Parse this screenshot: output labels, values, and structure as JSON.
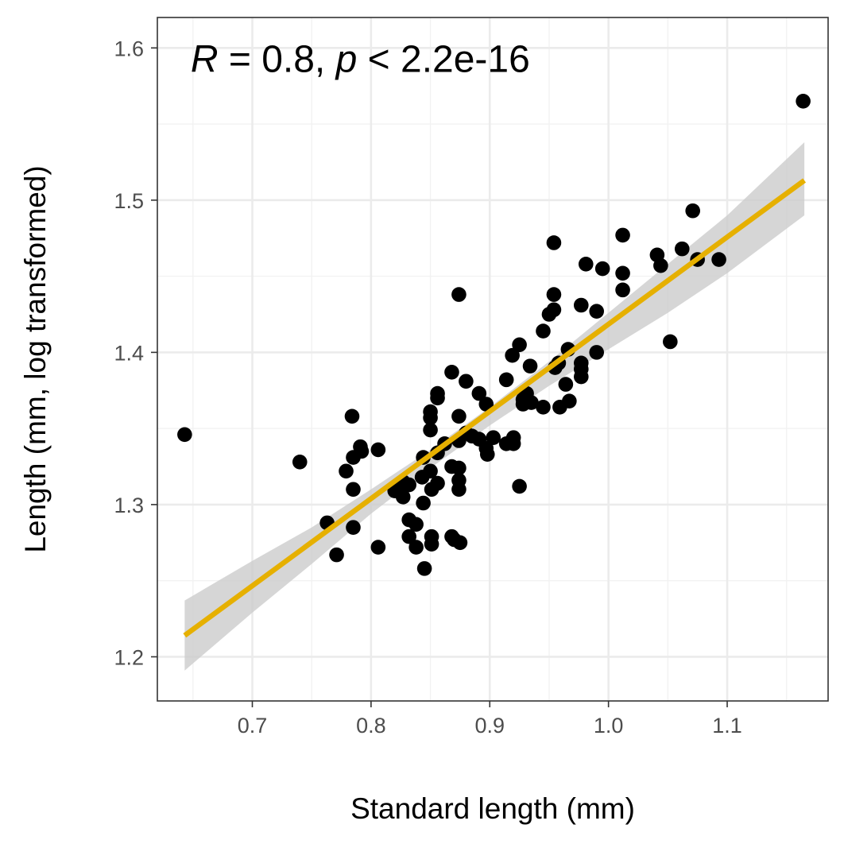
{
  "chart_data": {
    "type": "scatter",
    "xlabel": "Standard length (mm)",
    "ylabel": "Length (mm, log transformed)",
    "xlim": [
      0.62,
      1.185
    ],
    "ylim": [
      1.171,
      1.62
    ],
    "x_ticks": [
      0.7,
      0.8,
      0.9,
      1.0,
      1.1
    ],
    "x_tick_labels": [
      "0.7",
      "0.8",
      "0.9",
      "1.0",
      "1.1"
    ],
    "y_ticks": [
      1.2,
      1.3,
      1.4,
      1.5,
      1.6
    ],
    "y_tick_labels": [
      "1.2",
      "1.3",
      "1.4",
      "1.5",
      "1.6"
    ],
    "grid": true,
    "annotation": {
      "r_symbol": "R",
      "r_text": " = 0.8, ",
      "p_symbol": "p",
      "p_text": " < 2.2e-16",
      "x": 0.648,
      "y": 1.593
    },
    "fit": {
      "x": [
        0.643,
        1.165
      ],
      "y": [
        1.214,
        1.513
      ],
      "color": "#E6B000",
      "ci": [
        [
          0.643,
          1.237,
          1.191
        ],
        [
          0.7,
          1.263,
          1.229
        ],
        [
          0.75,
          1.285,
          1.261
        ],
        [
          0.8,
          1.31,
          1.294
        ],
        [
          0.85,
          1.336,
          1.324
        ],
        [
          0.9,
          1.364,
          1.352
        ],
        [
          0.95,
          1.394,
          1.378
        ],
        [
          1.0,
          1.426,
          1.402
        ],
        [
          1.05,
          1.458,
          1.426
        ],
        [
          1.1,
          1.49,
          1.452
        ],
        [
          1.165,
          1.538,
          1.49
        ]
      ],
      "ci_color": "#cccccc"
    },
    "point_color": "#000000",
    "points": [
      [
        0.643,
        1.346
      ],
      [
        0.74,
        1.328
      ],
      [
        0.763,
        1.288
      ],
      [
        0.771,
        1.267
      ],
      [
        0.779,
        1.322
      ],
      [
        0.784,
        1.358
      ],
      [
        0.785,
        1.331
      ],
      [
        0.785,
        1.31
      ],
      [
        0.785,
        1.285
      ],
      [
        0.791,
        1.338
      ],
      [
        0.792,
        1.335
      ],
      [
        0.806,
        1.336
      ],
      [
        0.806,
        1.272
      ],
      [
        0.82,
        1.309
      ],
      [
        0.823,
        1.31
      ],
      [
        0.827,
        1.315
      ],
      [
        0.827,
        1.305
      ],
      [
        0.832,
        1.313
      ],
      [
        0.832,
        1.29
      ],
      [
        0.832,
        1.279
      ],
      [
        0.838,
        1.287
      ],
      [
        0.838,
        1.272
      ],
      [
        0.843,
        1.318
      ],
      [
        0.844,
        1.331
      ],
      [
        0.844,
        1.301
      ],
      [
        0.845,
        1.258
      ],
      [
        0.85,
        1.361
      ],
      [
        0.85,
        1.357
      ],
      [
        0.85,
        1.349
      ],
      [
        0.85,
        1.322
      ],
      [
        0.851,
        1.31
      ],
      [
        0.851,
        1.279
      ],
      [
        0.851,
        1.274
      ],
      [
        0.856,
        1.373
      ],
      [
        0.856,
        1.37
      ],
      [
        0.856,
        1.334
      ],
      [
        0.856,
        1.314
      ],
      [
        0.862,
        1.34
      ],
      [
        0.868,
        1.387
      ],
      [
        0.868,
        1.325
      ],
      [
        0.868,
        1.279
      ],
      [
        0.87,
        1.277
      ],
      [
        0.874,
        1.438
      ],
      [
        0.874,
        1.358
      ],
      [
        0.874,
        1.342
      ],
      [
        0.874,
        1.324
      ],
      [
        0.874,
        1.316
      ],
      [
        0.874,
        1.31
      ],
      [
        0.875,
        1.275
      ],
      [
        0.88,
        1.381
      ],
      [
        0.88,
        1.347
      ],
      [
        0.885,
        1.345
      ],
      [
        0.891,
        1.373
      ],
      [
        0.891,
        1.343
      ],
      [
        0.897,
        1.366
      ],
      [
        0.897,
        1.337
      ],
      [
        0.898,
        1.333
      ],
      [
        0.903,
        1.344
      ],
      [
        0.914,
        1.382
      ],
      [
        0.914,
        1.34
      ],
      [
        0.919,
        1.398
      ],
      [
        0.92,
        1.344
      ],
      [
        0.92,
        1.34
      ],
      [
        0.925,
        1.405
      ],
      [
        0.925,
        1.312
      ],
      [
        0.928,
        1.369
      ],
      [
        0.928,
        1.366
      ],
      [
        0.931,
        1.373
      ],
      [
        0.934,
        1.391
      ],
      [
        0.935,
        1.367
      ],
      [
        0.945,
        1.414
      ],
      [
        0.945,
        1.364
      ],
      [
        0.95,
        1.425
      ],
      [
        0.954,
        1.472
      ],
      [
        0.954,
        1.438
      ],
      [
        0.954,
        1.428
      ],
      [
        0.955,
        1.39
      ],
      [
        0.958,
        1.393
      ],
      [
        0.959,
        1.364
      ],
      [
        0.964,
        1.379
      ],
      [
        0.966,
        1.402
      ],
      [
        0.967,
        1.368
      ],
      [
        0.977,
        1.431
      ],
      [
        0.977,
        1.393
      ],
      [
        0.977,
        1.389
      ],
      [
        0.977,
        1.384
      ],
      [
        0.981,
        1.458
      ],
      [
        0.99,
        1.427
      ],
      [
        0.99,
        1.4
      ],
      [
        0.995,
        1.455
      ],
      [
        1.012,
        1.477
      ],
      [
        1.012,
        1.452
      ],
      [
        1.012,
        1.441
      ],
      [
        1.041,
        1.464
      ],
      [
        1.044,
        1.457
      ],
      [
        1.052,
        1.407
      ],
      [
        1.062,
        1.468
      ],
      [
        1.071,
        1.493
      ],
      [
        1.075,
        1.461
      ],
      [
        1.093,
        1.461
      ],
      [
        1.164,
        1.565
      ]
    ]
  }
}
